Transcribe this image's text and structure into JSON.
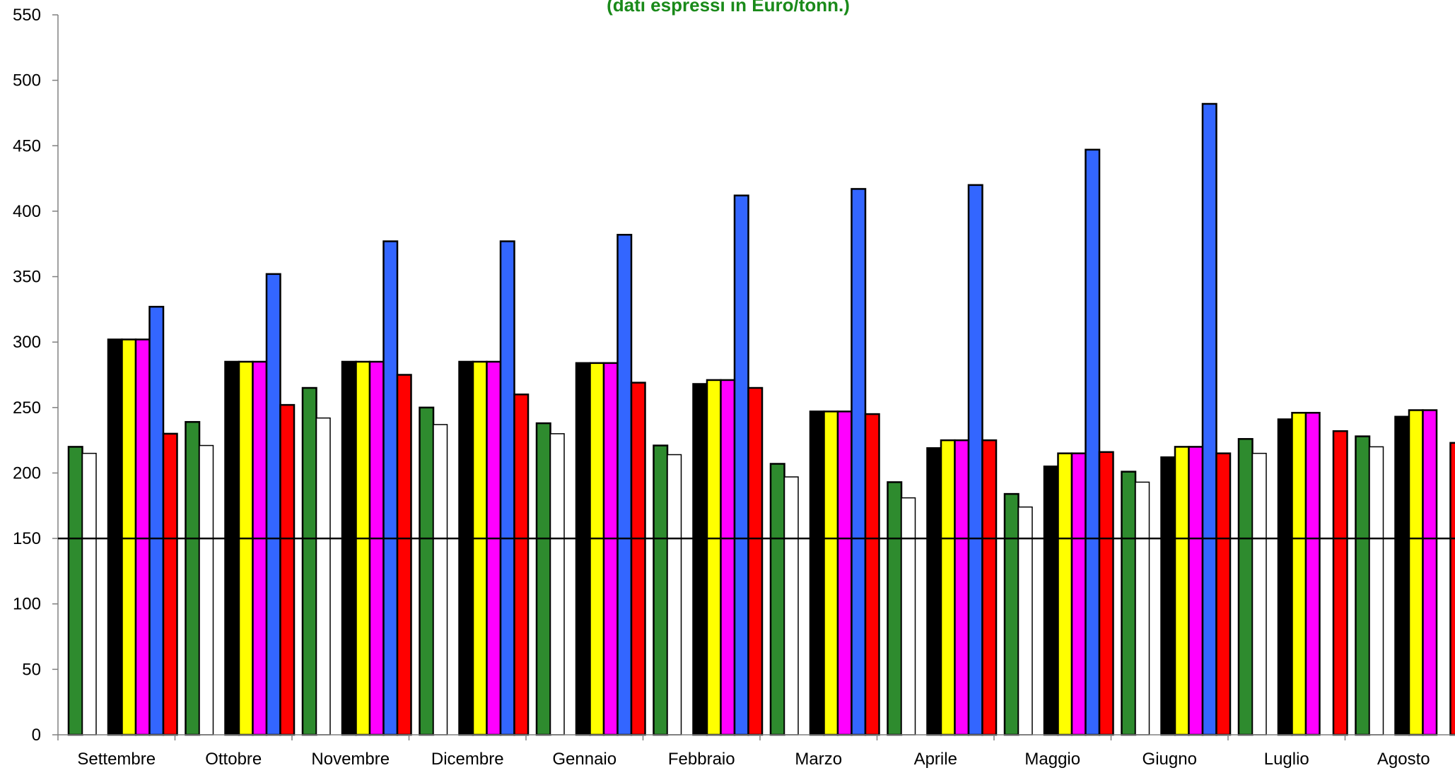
{
  "chart_data": {
    "type": "bar",
    "title": "(dati espressi in Euro/tonn.)",
    "title_color": "#1a8a1a",
    "xlabel": "",
    "ylabel": "",
    "ylim": [
      0,
      550
    ],
    "yticks": [
      0,
      50,
      100,
      150,
      200,
      250,
      300,
      350,
      400,
      450,
      500,
      550
    ],
    "grid": false,
    "legend": "none",
    "categories": [
      "Settembre",
      "Ottobre",
      "Novembre",
      "Dicembre",
      "Gennaio",
      "Febbraio",
      "Marzo",
      "Aprile",
      "Maggio",
      "Giugno",
      "Luglio",
      "Agosto"
    ],
    "series": [
      {
        "color": "#2e8b2e",
        "values": [
          220,
          239,
          265,
          250,
          238,
          221,
          207,
          193,
          184,
          201,
          226,
          228
        ]
      },
      {
        "color": "#ffffff",
        "values": [
          215,
          221,
          242,
          237,
          230,
          214,
          197,
          181,
          174,
          193,
          215,
          220
        ]
      },
      {
        "color": "#000000",
        "values": [
          302,
          285,
          285,
          285,
          284,
          268,
          247,
          219,
          205,
          212,
          241,
          243
        ]
      },
      {
        "color": "#ffff00",
        "values": [
          302,
          285,
          285,
          285,
          284,
          271,
          247,
          225,
          215,
          220,
          246,
          248
        ]
      },
      {
        "color": "#ff00ff",
        "values": [
          302,
          285,
          285,
          285,
          284,
          271,
          247,
          225,
          215,
          220,
          246,
          248
        ]
      },
      {
        "color": "#3366ff",
        "values": [
          327,
          352,
          377,
          377,
          382,
          412,
          417,
          420,
          447,
          482,
          null,
          null
        ]
      },
      {
        "color": "#ff0000",
        "values": [
          230,
          252,
          275,
          260,
          269,
          265,
          245,
          225,
          216,
          215,
          232,
          223
        ]
      }
    ],
    "reference_line": {
      "color": "#000000",
      "marker": "diamond",
      "values": [
        150,
        150,
        150,
        150,
        150,
        150,
        150,
        150,
        150,
        150,
        150,
        150
      ]
    }
  }
}
